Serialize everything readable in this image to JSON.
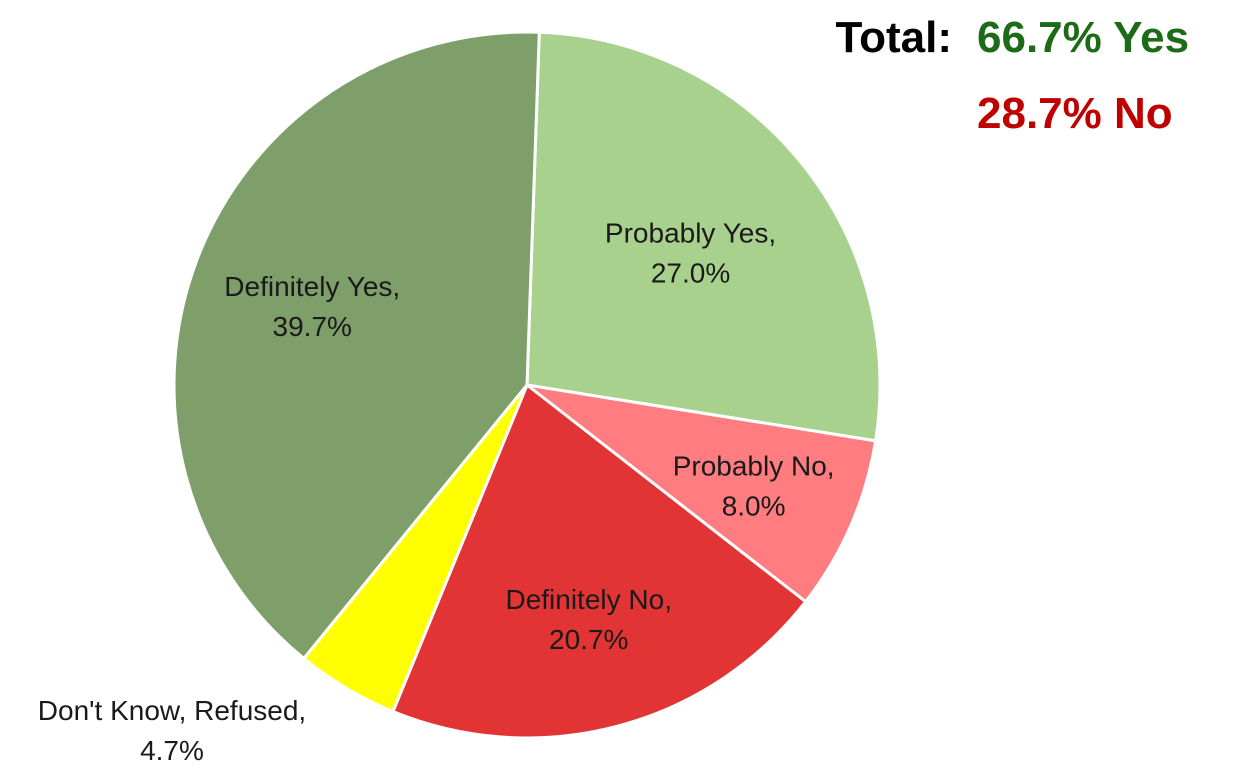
{
  "chart_data": {
    "type": "pie",
    "title": "",
    "slices": [
      {
        "label": "Probably Yes",
        "value_text": "27.0%",
        "value": 27.0,
        "color": "#a9d18e"
      },
      {
        "label": "Probably No",
        "value_text": "8.0%",
        "value": 8.0,
        "color": "#ff7c80"
      },
      {
        "label": "Definitely No",
        "value_text": "20.7%",
        "value": 20.7,
        "color": "#e33435"
      },
      {
        "label": "Don't Know, Refused",
        "value_text": "4.7%",
        "value": 4.7,
        "color": "#ffff00"
      },
      {
        "label": "Definitely Yes",
        "value_text": "39.7%",
        "value": 39.7,
        "color": "#7f9f6a"
      }
    ],
    "slice_border_color": "#ffffff"
  },
  "summary": {
    "label": "Total:",
    "yes_text": "66.7% Yes",
    "no_text": "28.7% No",
    "label_color": "#000000",
    "yes_color": "#1e6b17",
    "no_color": "#c00000"
  }
}
